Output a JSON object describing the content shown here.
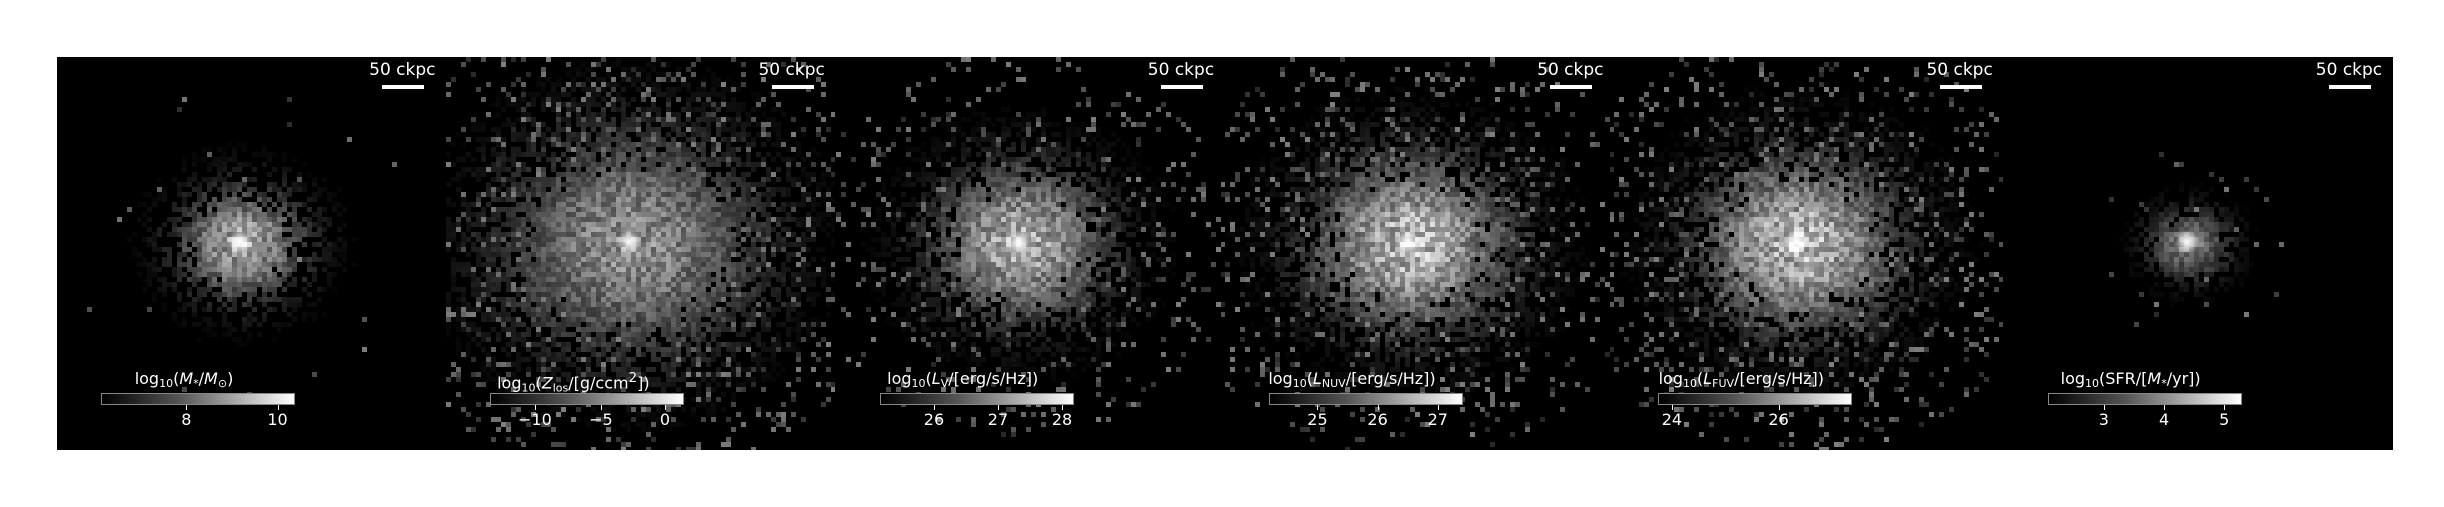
{
  "scalebar_text": "50 ckpc",
  "panels": [
    {
      "id": "stellar-mass",
      "colorbar_label_html": "log<sub>10</sub>(<i>M</i><sub>*</sub>/<i>M</i><sub>⊙</sub>)",
      "ticks": [
        "8",
        "10"
      ],
      "tick_fracs": [
        0.44,
        0.91
      ],
      "style": {
        "sigma": 0.11,
        "noise": 0.02,
        "core": 0.3,
        "brightness": 0.75,
        "extent": 0.38
      }
    },
    {
      "id": "metal-column",
      "colorbar_label_html": "log<sub>10</sub>(<i>Z</i><sub>los</sub>/[g/ccm<sup>2</sup>])",
      "ticks": [
        "−10",
        "−5",
        "0"
      ],
      "tick_fracs": [
        0.23,
        0.57,
        0.9
      ],
      "style": {
        "sigma": 0.22,
        "noise": 0.35,
        "core": 0.18,
        "brightness": 0.65,
        "extent": 0.55
      }
    },
    {
      "id": "v-band",
      "colorbar_label_html": "log<sub>10</sub>(<i>L</i><sub>V</sub>/[erg/s/Hz])",
      "ticks": [
        "26",
        "27",
        "28"
      ],
      "tick_fracs": [
        0.28,
        0.61,
        0.94
      ],
      "style": {
        "sigma": 0.15,
        "noise": 0.25,
        "core": 0.2,
        "brightness": 0.8,
        "extent": 0.45
      }
    },
    {
      "id": "nuv",
      "colorbar_label_html": "log<sub>10</sub>(<i>L</i><sub>NUV</sub>/[erg/s/Hz])",
      "ticks": [
        "25",
        "26",
        "27"
      ],
      "tick_fracs": [
        0.25,
        0.56,
        0.87
      ],
      "style": {
        "sigma": 0.17,
        "noise": 0.35,
        "core": 0.1,
        "brightness": 0.85,
        "extent": 0.5
      }
    },
    {
      "id": "fuv",
      "colorbar_label_html": "log<sub>10</sub>(<i>L</i><sub>FUV</sub>/[erg/s/Hz])",
      "ticks": [
        "24",
        "26"
      ],
      "tick_fracs": [
        0.07,
        0.62
      ],
      "style": {
        "sigma": 0.17,
        "noise": 0.35,
        "core": 0.1,
        "brightness": 0.85,
        "extent": 0.5
      }
    },
    {
      "id": "sfr",
      "colorbar_label_html": "log<sub>10</sub>(SFR/[<i>M</i><sub>*</sub>/yr])",
      "ticks": [
        "3",
        "4",
        "5"
      ],
      "tick_fracs": [
        0.29,
        0.6,
        0.91
      ],
      "style": {
        "sigma": 0.07,
        "noise": 0.05,
        "core": 0.25,
        "brightness": 0.55,
        "extent": 0.22
      }
    }
  ]
}
